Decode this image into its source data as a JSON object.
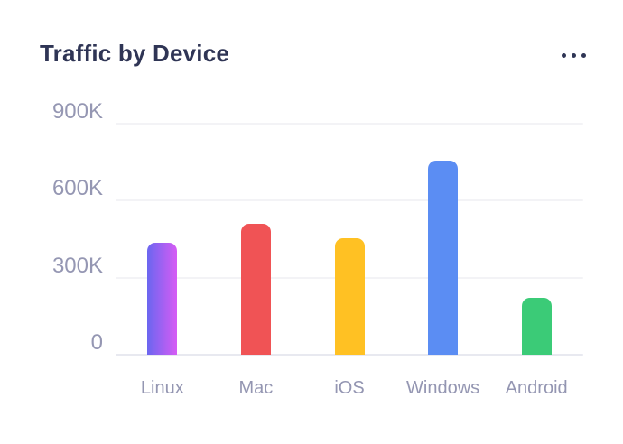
{
  "header": {
    "title": "Traffic by Device",
    "more_options": "more-options-menu"
  },
  "colors": {
    "background": "#FFFFFF",
    "title_text": "#2F3555",
    "axis_tick_text": "#9597B3",
    "gridline": "#F3F3F6",
    "baseline": "#E8E9F0"
  },
  "chart_data": {
    "type": "bar",
    "title": "Traffic by Device",
    "categories": [
      "Linux",
      "Mac",
      "iOS",
      "Windows",
      "Android"
    ],
    "values": [
      435000,
      510000,
      455000,
      755000,
      220000
    ],
    "xlabel": "",
    "ylabel": "",
    "ylim": [
      0,
      900000
    ],
    "yticks": [
      {
        "value": 900000,
        "label": "900K"
      },
      {
        "value": 600000,
        "label": "600K"
      },
      {
        "value": 300000,
        "label": "300K"
      },
      {
        "value": 0,
        "label": "0"
      }
    ],
    "grid": "horizontal",
    "legend": "none",
    "bar_styles": [
      {
        "category": "Linux",
        "fill": "gradient",
        "gradient_from": "#6B66F0",
        "gradient_to": "#D65CF4"
      },
      {
        "category": "Mac",
        "fill": "solid",
        "color": "#F05355"
      },
      {
        "category": "iOS",
        "fill": "solid",
        "color": "#FFC123"
      },
      {
        "category": "Windows",
        "fill": "solid",
        "color": "#5B8DF3"
      },
      {
        "category": "Android",
        "fill": "solid",
        "color": "#3BCB77"
      }
    ]
  }
}
